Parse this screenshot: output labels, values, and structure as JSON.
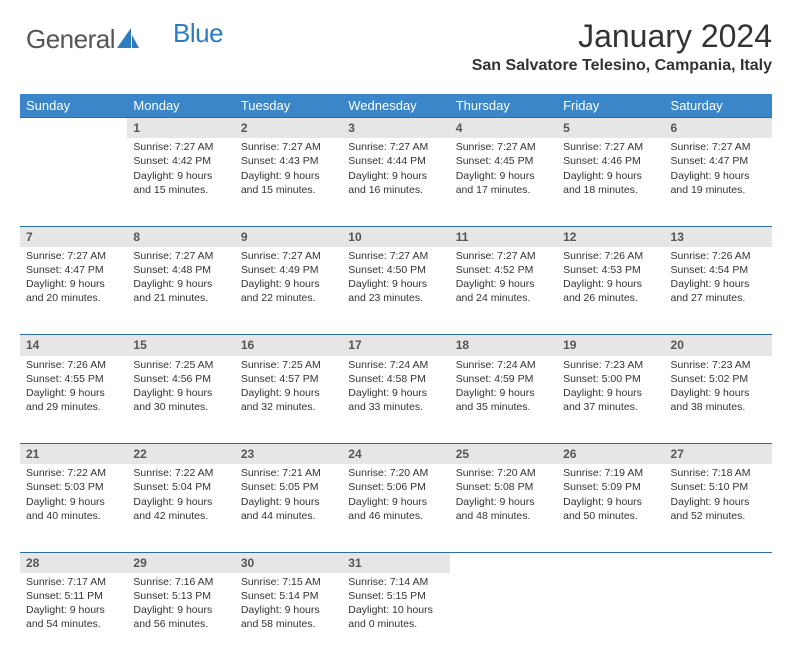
{
  "brand": {
    "part1": "General",
    "part2": "Blue",
    "shape_color": "#2b7cc0"
  },
  "title": "January 2024",
  "location": "San Salvatore Telesino, Campania, Italy",
  "colors": {
    "header_bg": "#3a86c8",
    "daynum_bg": "#e6e6e6",
    "border": "#2a6da8",
    "text": "#333333"
  },
  "weekdays": [
    "Sunday",
    "Monday",
    "Tuesday",
    "Wednesday",
    "Thursday",
    "Friday",
    "Saturday"
  ],
  "weeks": [
    {
      "nums": [
        "",
        "1",
        "2",
        "3",
        "4",
        "5",
        "6"
      ],
      "cells": [
        {
          "empty": true
        },
        {
          "sunrise": "Sunrise: 7:27 AM",
          "sunset": "Sunset: 4:42 PM",
          "day1": "Daylight: 9 hours",
          "day2": "and 15 minutes."
        },
        {
          "sunrise": "Sunrise: 7:27 AM",
          "sunset": "Sunset: 4:43 PM",
          "day1": "Daylight: 9 hours",
          "day2": "and 15 minutes."
        },
        {
          "sunrise": "Sunrise: 7:27 AM",
          "sunset": "Sunset: 4:44 PM",
          "day1": "Daylight: 9 hours",
          "day2": "and 16 minutes."
        },
        {
          "sunrise": "Sunrise: 7:27 AM",
          "sunset": "Sunset: 4:45 PM",
          "day1": "Daylight: 9 hours",
          "day2": "and 17 minutes."
        },
        {
          "sunrise": "Sunrise: 7:27 AM",
          "sunset": "Sunset: 4:46 PM",
          "day1": "Daylight: 9 hours",
          "day2": "and 18 minutes."
        },
        {
          "sunrise": "Sunrise: 7:27 AM",
          "sunset": "Sunset: 4:47 PM",
          "day1": "Daylight: 9 hours",
          "day2": "and 19 minutes."
        }
      ]
    },
    {
      "nums": [
        "7",
        "8",
        "9",
        "10",
        "11",
        "12",
        "13"
      ],
      "cells": [
        {
          "sunrise": "Sunrise: 7:27 AM",
          "sunset": "Sunset: 4:47 PM",
          "day1": "Daylight: 9 hours",
          "day2": "and 20 minutes."
        },
        {
          "sunrise": "Sunrise: 7:27 AM",
          "sunset": "Sunset: 4:48 PM",
          "day1": "Daylight: 9 hours",
          "day2": "and 21 minutes."
        },
        {
          "sunrise": "Sunrise: 7:27 AM",
          "sunset": "Sunset: 4:49 PM",
          "day1": "Daylight: 9 hours",
          "day2": "and 22 minutes."
        },
        {
          "sunrise": "Sunrise: 7:27 AM",
          "sunset": "Sunset: 4:50 PM",
          "day1": "Daylight: 9 hours",
          "day2": "and 23 minutes."
        },
        {
          "sunrise": "Sunrise: 7:27 AM",
          "sunset": "Sunset: 4:52 PM",
          "day1": "Daylight: 9 hours",
          "day2": "and 24 minutes."
        },
        {
          "sunrise": "Sunrise: 7:26 AM",
          "sunset": "Sunset: 4:53 PM",
          "day1": "Daylight: 9 hours",
          "day2": "and 26 minutes."
        },
        {
          "sunrise": "Sunrise: 7:26 AM",
          "sunset": "Sunset: 4:54 PM",
          "day1": "Daylight: 9 hours",
          "day2": "and 27 minutes."
        }
      ]
    },
    {
      "nums": [
        "14",
        "15",
        "16",
        "17",
        "18",
        "19",
        "20"
      ],
      "cells": [
        {
          "sunrise": "Sunrise: 7:26 AM",
          "sunset": "Sunset: 4:55 PM",
          "day1": "Daylight: 9 hours",
          "day2": "and 29 minutes."
        },
        {
          "sunrise": "Sunrise: 7:25 AM",
          "sunset": "Sunset: 4:56 PM",
          "day1": "Daylight: 9 hours",
          "day2": "and 30 minutes."
        },
        {
          "sunrise": "Sunrise: 7:25 AM",
          "sunset": "Sunset: 4:57 PM",
          "day1": "Daylight: 9 hours",
          "day2": "and 32 minutes."
        },
        {
          "sunrise": "Sunrise: 7:24 AM",
          "sunset": "Sunset: 4:58 PM",
          "day1": "Daylight: 9 hours",
          "day2": "and 33 minutes."
        },
        {
          "sunrise": "Sunrise: 7:24 AM",
          "sunset": "Sunset: 4:59 PM",
          "day1": "Daylight: 9 hours",
          "day2": "and 35 minutes."
        },
        {
          "sunrise": "Sunrise: 7:23 AM",
          "sunset": "Sunset: 5:00 PM",
          "day1": "Daylight: 9 hours",
          "day2": "and 37 minutes."
        },
        {
          "sunrise": "Sunrise: 7:23 AM",
          "sunset": "Sunset: 5:02 PM",
          "day1": "Daylight: 9 hours",
          "day2": "and 38 minutes."
        }
      ]
    },
    {
      "nums": [
        "21",
        "22",
        "23",
        "24",
        "25",
        "26",
        "27"
      ],
      "cells": [
        {
          "sunrise": "Sunrise: 7:22 AM",
          "sunset": "Sunset: 5:03 PM",
          "day1": "Daylight: 9 hours",
          "day2": "and 40 minutes."
        },
        {
          "sunrise": "Sunrise: 7:22 AM",
          "sunset": "Sunset: 5:04 PM",
          "day1": "Daylight: 9 hours",
          "day2": "and 42 minutes."
        },
        {
          "sunrise": "Sunrise: 7:21 AM",
          "sunset": "Sunset: 5:05 PM",
          "day1": "Daylight: 9 hours",
          "day2": "and 44 minutes."
        },
        {
          "sunrise": "Sunrise: 7:20 AM",
          "sunset": "Sunset: 5:06 PM",
          "day1": "Daylight: 9 hours",
          "day2": "and 46 minutes."
        },
        {
          "sunrise": "Sunrise: 7:20 AM",
          "sunset": "Sunset: 5:08 PM",
          "day1": "Daylight: 9 hours",
          "day2": "and 48 minutes."
        },
        {
          "sunrise": "Sunrise: 7:19 AM",
          "sunset": "Sunset: 5:09 PM",
          "day1": "Daylight: 9 hours",
          "day2": "and 50 minutes."
        },
        {
          "sunrise": "Sunrise: 7:18 AM",
          "sunset": "Sunset: 5:10 PM",
          "day1": "Daylight: 9 hours",
          "day2": "and 52 minutes."
        }
      ]
    },
    {
      "nums": [
        "28",
        "29",
        "30",
        "31",
        "",
        "",
        ""
      ],
      "cells": [
        {
          "sunrise": "Sunrise: 7:17 AM",
          "sunset": "Sunset: 5:11 PM",
          "day1": "Daylight: 9 hours",
          "day2": "and 54 minutes."
        },
        {
          "sunrise": "Sunrise: 7:16 AM",
          "sunset": "Sunset: 5:13 PM",
          "day1": "Daylight: 9 hours",
          "day2": "and 56 minutes."
        },
        {
          "sunrise": "Sunrise: 7:15 AM",
          "sunset": "Sunset: 5:14 PM",
          "day1": "Daylight: 9 hours",
          "day2": "and 58 minutes."
        },
        {
          "sunrise": "Sunrise: 7:14 AM",
          "sunset": "Sunset: 5:15 PM",
          "day1": "Daylight: 10 hours",
          "day2": "and 0 minutes."
        },
        {
          "empty": true
        },
        {
          "empty": true
        },
        {
          "empty": true
        }
      ]
    }
  ]
}
